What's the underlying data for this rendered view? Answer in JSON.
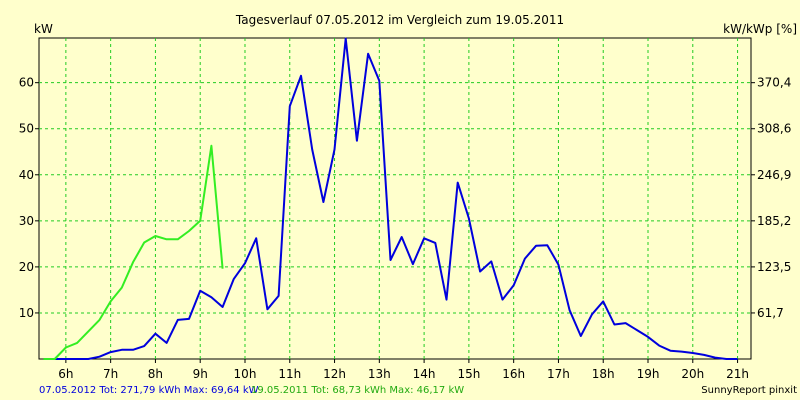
{
  "chart_data": {
    "type": "line",
    "title": "Tagesverlauf 07.05.2012 im Vergleich zum 19.05.2011",
    "ylabel_left": "kW",
    "ylabel_right": "kW/kWp [%]",
    "ylim": [
      0,
      69.7
    ],
    "xlim": [
      5.4,
      21.3
    ],
    "grid": true,
    "x_ticks": [
      6,
      7,
      8,
      9,
      10,
      11,
      12,
      13,
      14,
      15,
      16,
      17,
      18,
      19,
      20,
      21
    ],
    "x_tick_labels": [
      "6h",
      "7h",
      "8h",
      "9h",
      "10h",
      "11h",
      "12h",
      "13h",
      "14h",
      "15h",
      "16h",
      "17h",
      "18h",
      "19h",
      "20h",
      "21h"
    ],
    "y_ticks": [
      10,
      20,
      30,
      40,
      50,
      60
    ],
    "y_tick_labels": [
      "10",
      "20",
      "30",
      "40",
      "50",
      "60"
    ],
    "y2_ticks": [
      10,
      20,
      30,
      40,
      50,
      60
    ],
    "y2_tick_labels": [
      "61,7",
      "123,5",
      "185,2",
      "246,9",
      "308,6",
      "370,4"
    ],
    "series": [
      {
        "name": "07.05.2012",
        "color": "#0000dd",
        "x": [
          5.5,
          6.0,
          6.25,
          6.5,
          6.75,
          7.0,
          7.25,
          7.5,
          7.75,
          8.0,
          8.25,
          8.5,
          8.75,
          9.0,
          9.25,
          9.5,
          9.75,
          10.0,
          10.25,
          10.5,
          10.75,
          11.0,
          11.25,
          11.5,
          11.75,
          12.0,
          12.25,
          12.5,
          12.75,
          13.0,
          13.25,
          13.5,
          13.75,
          14.0,
          14.25,
          14.5,
          14.75,
          15.0,
          15.25,
          15.5,
          15.75,
          16.0,
          16.25,
          16.5,
          16.75,
          17.0,
          17.25,
          17.5,
          17.75,
          18.0,
          18.25,
          18.5,
          18.75,
          19.0,
          19.25,
          19.5,
          19.75,
          20.0,
          20.25,
          20.5,
          20.75,
          21.0
        ],
        "values": [
          0,
          0,
          0,
          0,
          0.5,
          1.5,
          2,
          2,
          2.8,
          5.5,
          3.5,
          8.5,
          8.7,
          14.8,
          13.4,
          11.3,
          17.4,
          20.8,
          26.2,
          10.8,
          13.7,
          54.9,
          61.5,
          45.5,
          34.1,
          45.5,
          69.6,
          47.4,
          66.3,
          60.4,
          21.5,
          26.5,
          20.6,
          26.2,
          25.2,
          12.9,
          38.3,
          30.5,
          19,
          21.2,
          12.9,
          16,
          21.8,
          24.6,
          24.7,
          20.5,
          10.6,
          5,
          9.7,
          12.5,
          7.5,
          7.8,
          6.3,
          4.8,
          2.9,
          1.8,
          1.6,
          1.3,
          0.9,
          0.3,
          0,
          0
        ]
      },
      {
        "name": "19.05.2011",
        "color": "#33ee22",
        "x": [
          5.5,
          5.75,
          6.0,
          6.25,
          6.5,
          6.75,
          7.0,
          7.25,
          7.5,
          7.75,
          8.0,
          8.25,
          8.5,
          8.75,
          9.0,
          9.25,
          9.5
        ],
        "values": [
          0,
          0,
          2.5,
          3.5,
          6,
          8.5,
          12.5,
          15.5,
          21,
          25.3,
          26.7,
          26,
          26,
          27.8,
          30,
          46.3,
          19.6
        ]
      }
    ],
    "footer_series_1": "07.05.2012 Tot: 271,79 kWh Max: 69,64 kW",
    "footer_series_2": "19.05.2011 Tot: 68,73 kWh Max: 46,17 kW",
    "credit": "SunnyReport pinxit"
  }
}
